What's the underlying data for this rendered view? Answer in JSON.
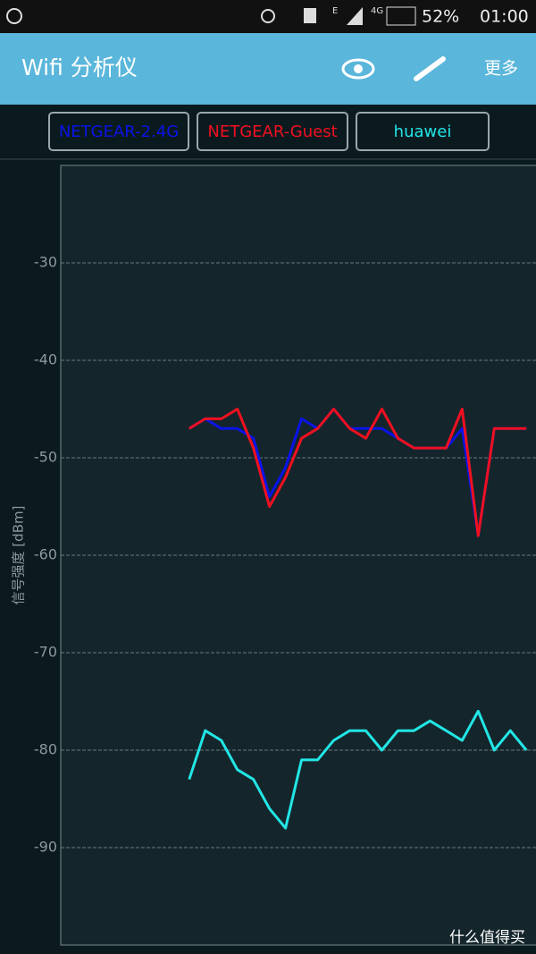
{
  "status_bar": {
    "network": "E",
    "signal": "4G",
    "battery": "52%",
    "time": "01:00"
  },
  "app_bar": {
    "title": "Wifi 分析仪",
    "more": "更多"
  },
  "watermark": "什么值得买",
  "chart_data": {
    "type": "line",
    "y_label": "信号强度 [dBm]",
    "x": [
      0,
      1,
      2,
      3,
      4,
      5,
      6,
      7,
      8,
      9,
      10,
      11,
      12,
      13,
      14,
      15,
      16,
      17,
      18,
      19,
      20,
      21
    ],
    "xlim": [
      -8,
      21.6
    ],
    "ylim": [
      -100,
      -20
    ],
    "yticks": [
      -30,
      -40,
      -50,
      -60,
      -70,
      -80,
      -90
    ],
    "grid": true,
    "series": [
      {
        "name": "NETGEAR-2.4G",
        "color": "#0a14e6",
        "values": [
          -47,
          -46,
          -47,
          -47,
          -48,
          -54,
          -51,
          -46,
          -47,
          -45,
          -47,
          -47,
          -47,
          -48,
          -49,
          -49,
          -49,
          -47,
          -58,
          -47,
          -47,
          -47
        ]
      },
      {
        "name": "NETGEAR-Guest",
        "color": "#f01020",
        "values": [
          -47,
          -46,
          -46,
          -45,
          -49,
          -55,
          -52,
          -48,
          -47,
          -45,
          -47,
          -48,
          -45,
          -48,
          -49,
          -49,
          -49,
          -45,
          -58,
          -47,
          -47,
          -47
        ]
      },
      {
        "name": "huawei",
        "color": "#22e6e6",
        "values": [
          -83,
          -78,
          -79,
          -82,
          -83,
          -86,
          -88,
          -81,
          -81,
          -79,
          -78,
          -78,
          -80,
          -78,
          -78,
          -77,
          -78,
          -79,
          -76,
          -80,
          -78,
          -80
        ]
      }
    ]
  }
}
